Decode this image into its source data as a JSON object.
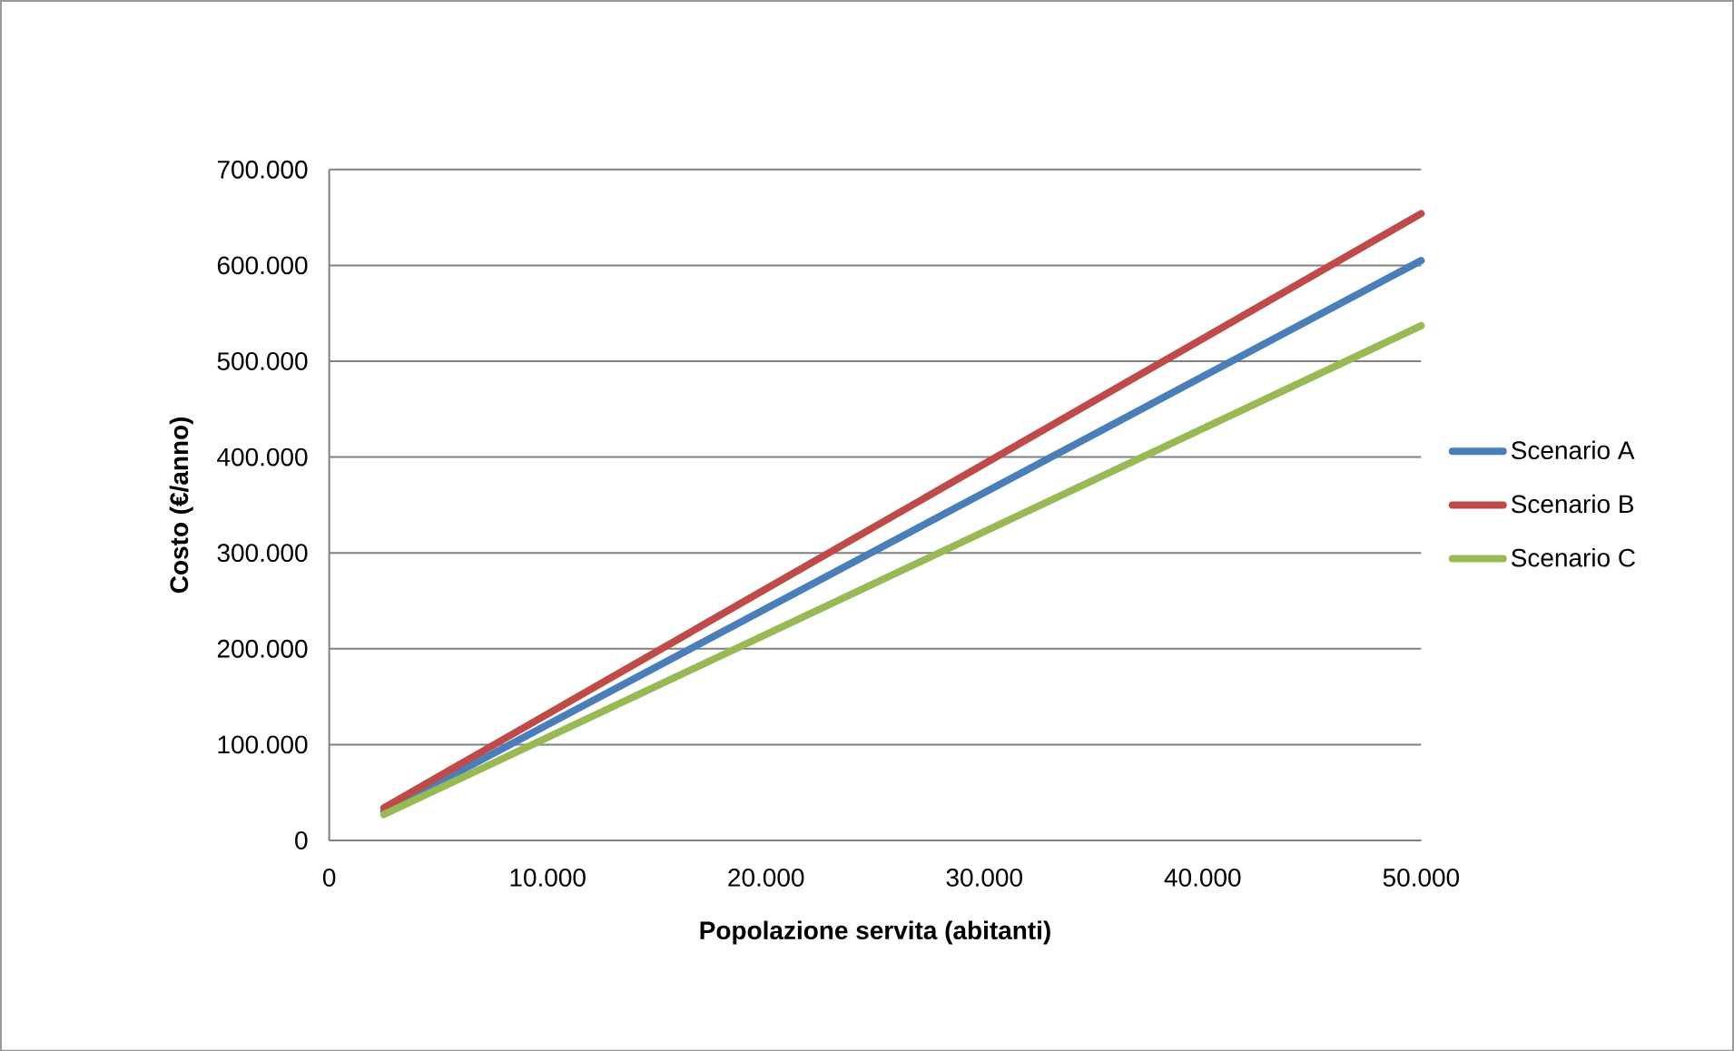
{
  "chart_data": {
    "type": "line",
    "xlabel": "Popolazione servita (abitanti)",
    "ylabel": "Costo (€/anno)",
    "xlim": [
      0,
      50000
    ],
    "xticks": [
      {
        "value": 0,
        "label": "0"
      },
      {
        "value": 10000,
        "label": "10.000"
      },
      {
        "value": 20000,
        "label": "20.000"
      },
      {
        "value": 30000,
        "label": "30.000"
      },
      {
        "value": 40000,
        "label": "40.000"
      },
      {
        "value": 50000,
        "label": "50.000"
      }
    ],
    "ylim": [
      0,
      700000
    ],
    "yticks": [
      {
        "value": 0,
        "label": "0"
      },
      {
        "value": 100000,
        "label": "100.000"
      },
      {
        "value": 200000,
        "label": "200.000"
      },
      {
        "value": 300000,
        "label": "300.000"
      },
      {
        "value": 400000,
        "label": "400.000"
      },
      {
        "value": 500000,
        "label": "500.000"
      },
      {
        "value": 600000,
        "label": "600.000"
      },
      {
        "value": 700000,
        "label": "700.000"
      }
    ],
    "x": [
      2500,
      50000
    ],
    "series": [
      {
        "name": "Scenario A",
        "color": "#4a7ebb",
        "values": [
          30000,
          605000
        ]
      },
      {
        "name": "Scenario B",
        "color": "#be4b48",
        "values": [
          34000,
          654000
        ]
      },
      {
        "name": "Scenario C",
        "color": "#98b954",
        "values": [
          27000,
          537000
        ]
      }
    ],
    "grid": "y",
    "legend": "right",
    "marker": "none",
    "line_style": "solid"
  }
}
